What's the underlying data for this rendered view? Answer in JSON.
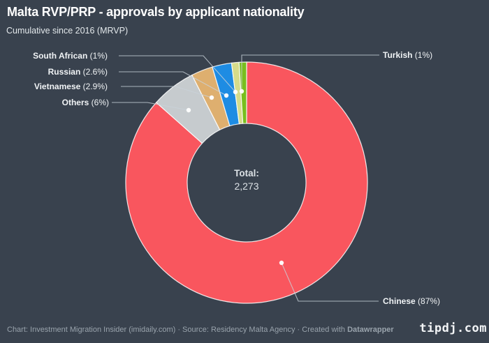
{
  "header": {
    "title": "Malta RVP/PRP - approvals by applicant nationality",
    "subtitle": "Cumulative since 2016 (MRVP)"
  },
  "chart_data": {
    "type": "pie",
    "variant": "donut",
    "title": "Malta RVP/PRP - approvals by applicant nationality",
    "subtitle": "Cumulative since 2016 (MRVP)",
    "total": 2273,
    "center_label": {
      "title": "Total:",
      "value": "2,273"
    },
    "slices": [
      {
        "name": "Chinese",
        "pct_label": "(87%)",
        "value": 87,
        "color": "#F9565E"
      },
      {
        "name": "Others",
        "pct_label": "(6%)",
        "value": 6,
        "color": "#C6CBCE"
      },
      {
        "name": "Vietnamese",
        "pct_label": "(2.9%)",
        "value": 2.9,
        "color": "#DEAF6F"
      },
      {
        "name": "Russian",
        "pct_label": "(2.6%)",
        "value": 2.6,
        "color": "#1E8CE3"
      },
      {
        "name": "South African",
        "pct_label": "(1%)",
        "value": 1,
        "color": "#D6DC8A"
      },
      {
        "name": "Turkish",
        "pct_label": "(1%)",
        "value": 1,
        "color": "#79BE1E"
      }
    ],
    "start_angle_deg": 0,
    "direction": "clockwise",
    "legend_position": "callout-labels"
  },
  "footer": {
    "chart_prefix": "Chart: ",
    "chart_credit": "Investment Migration Insider (imidaily.com)",
    "sep1": " · ",
    "source_prefix": "Source: ",
    "source": "Residency Malta Agency",
    "sep2": " · ",
    "created_with": "Created with ",
    "brand": "Datawrapper"
  },
  "watermark": "tipdj.com",
  "colors": {
    "background": "#39424E",
    "chinese_red": "#F9565E",
    "others_gray": "#C6CBCE",
    "vietnamese_tan": "#DEAF6F",
    "russian_blue": "#1E8CE3",
    "south_african_pale": "#D6DC8A",
    "turkish_green": "#79BE1E",
    "leader_line": "#C9D2D9",
    "title_text": "#FFFFFF",
    "footer_text": "#99A3AC"
  }
}
